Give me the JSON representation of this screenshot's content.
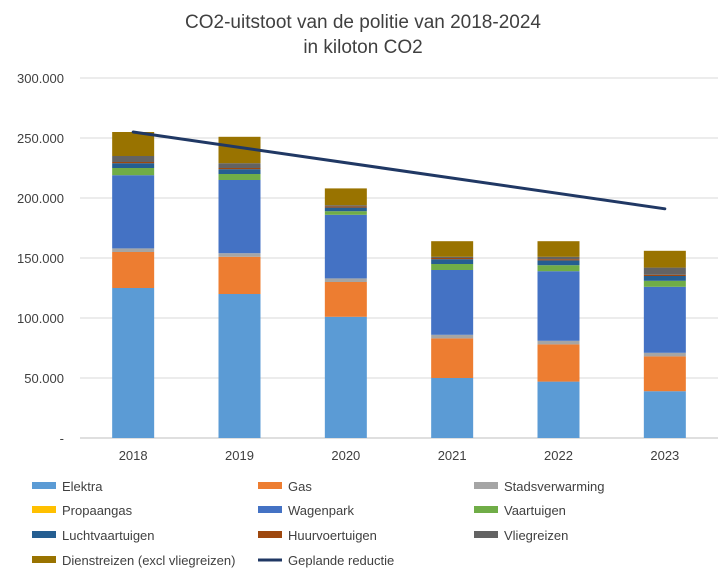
{
  "chart_data": {
    "type": "bar",
    "stacked": true,
    "title_lines": [
      "CO2-uitstoot van de politie van 2018-2024",
      "in kiloton CO2"
    ],
    "categories": [
      "2018",
      "2019",
      "2020",
      "2021",
      "2022",
      "2023"
    ],
    "ylim": [
      0,
      300000
    ],
    "yticks": [
      0,
      50000,
      100000,
      150000,
      200000,
      250000,
      300000
    ],
    "ytick_labels": [
      "-",
      "50.000",
      "100.000",
      "150.000",
      "200.000",
      "250.000",
      "300.000"
    ],
    "grid": true,
    "legend_position": "bottom",
    "series": [
      {
        "name": "Elektra",
        "color": "#5b9bd5",
        "values": [
          125000,
          120000,
          101000,
          50000,
          47000,
          39000
        ]
      },
      {
        "name": "Gas",
        "color": "#ed7d31",
        "values": [
          30000,
          31000,
          29000,
          33000,
          31000,
          29000
        ]
      },
      {
        "name": "Stadsverwarming",
        "color": "#a5a5a5",
        "values": [
          3000,
          3000,
          3000,
          3000,
          3000,
          3000
        ]
      },
      {
        "name": "Propaangas",
        "color": "#ffc000",
        "values": [
          0,
          0,
          0,
          0,
          0,
          0
        ]
      },
      {
        "name": "Wagenpark",
        "color": "#4472c4",
        "values": [
          61000,
          61000,
          53000,
          54000,
          58000,
          55000
        ]
      },
      {
        "name": "Vaartuigen",
        "color": "#70ad47",
        "values": [
          6000,
          5000,
          3000,
          5000,
          5000,
          5000
        ]
      },
      {
        "name": "Luchtvaartuigen",
        "color": "#255e91",
        "values": [
          4000,
          4000,
          3000,
          4000,
          4000,
          4000
        ]
      },
      {
        "name": "Huurvoertuigen",
        "color": "#9e480e",
        "values": [
          1000,
          1000,
          1000,
          1000,
          1000,
          1000
        ]
      },
      {
        "name": "Vliegreizen",
        "color": "#636363",
        "values": [
          5000,
          4000,
          1000,
          1000,
          2000,
          6000
        ]
      },
      {
        "name": "Dienstreizen (excl vliegreizen)",
        "color": "#997300",
        "values": [
          20000,
          22000,
          14000,
          13000,
          13000,
          14000
        ]
      }
    ],
    "line": {
      "name": "Geplande reductie",
      "color": "#203864",
      "start": 255000,
      "end": 191000
    }
  }
}
